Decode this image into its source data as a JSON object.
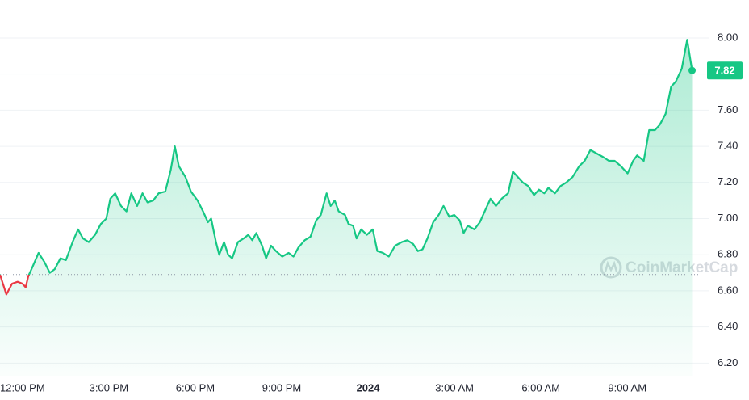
{
  "chart_data": {
    "type": "line",
    "x": [
      -0.78,
      -0.56,
      -0.36,
      -0.17,
      0,
      0.11,
      0.2,
      0.34,
      0.56,
      0.76,
      0.95,
      1.12,
      1.32,
      1.51,
      1.74,
      1.93,
      2.1,
      2.3,
      2.52,
      2.72,
      2.91,
      3.05,
      3.22,
      3.42,
      3.61,
      3.78,
      3.98,
      4.17,
      4.34,
      4.54,
      4.73,
      4.96,
      5.15,
      5.29,
      5.43,
      5.66,
      5.85,
      6.08,
      6.27,
      6.44,
      6.55,
      6.72,
      6.83,
      7,
      7.14,
      7.28,
      7.48,
      7.68,
      7.84,
      7.98,
      8.12,
      8.32,
      8.46,
      8.63,
      8.8,
      9.02,
      9.24,
      9.41,
      9.58,
      9.8,
      10,
      10.2,
      10.36,
      10.56,
      10.7,
      10.84,
      10.98,
      11.2,
      11.32,
      11.48,
      11.6,
      11.76,
      11.96,
      12.16,
      12.32,
      12.52,
      12.72,
      12.94,
      13.17,
      13.36,
      13.56,
      13.73,
      13.89,
      14.06,
      14.26,
      14.45,
      14.62,
      14.82,
      14.99,
      15.18,
      15.32,
      15.46,
      15.69,
      15.88,
      16.08,
      16.25,
      16.44,
      16.64,
      16.86,
      17.03,
      17.2,
      17.37,
      17.56,
      17.76,
      17.93,
      18.12,
      18.26,
      18.49,
      18.68,
      18.88,
      19.1,
      19.33,
      19.52,
      19.72,
      19.94,
      20.17,
      20.36,
      20.56,
      20.78,
      21.01,
      21.2,
      21.34,
      21.57,
      21.76,
      21.96,
      22.13,
      22.33,
      22.52,
      22.69,
      22.89,
      23.08,
      23.25
    ],
    "series": [
      {
        "values": [
          6.69,
          6.58,
          6.64,
          6.65,
          6.64,
          6.62,
          6.68,
          6.73,
          6.81,
          6.76,
          6.7,
          6.72,
          6.78,
          6.77,
          6.87,
          6.94,
          6.89,
          6.87,
          6.91,
          6.97,
          7,
          7.11,
          7.14,
          7.07,
          7.04,
          7.14,
          7.07,
          7.14,
          7.09,
          7.1,
          7.14,
          7.15,
          7.27,
          7.4,
          7.29,
          7.23,
          7.15,
          7.1,
          7.04,
          6.98,
          7,
          6.87,
          6.8,
          6.87,
          6.8,
          6.78,
          6.87,
          6.89,
          6.91,
          6.88,
          6.92,
          6.85,
          6.78,
          6.85,
          6.82,
          6.79,
          6.81,
          6.79,
          6.84,
          6.88,
          6.9,
          6.99,
          7.02,
          7.14,
          7.07,
          7.1,
          7.04,
          7.02,
          6.97,
          6.96,
          6.89,
          6.94,
          6.91,
          6.94,
          6.82,
          6.81,
          6.79,
          6.85,
          6.87,
          6.88,
          6.86,
          6.82,
          6.83,
          6.89,
          6.98,
          7.02,
          7.07,
          7.01,
          7.02,
          6.99,
          6.92,
          6.96,
          6.94,
          6.98,
          7.05,
          7.11,
          7.07,
          7.11,
          7.14,
          7.26,
          7.23,
          7.2,
          7.18,
          7.13,
          7.16,
          7.14,
          7.17,
          7.14,
          7.18,
          7.2,
          7.23,
          7.29,
          7.32,
          7.38,
          7.36,
          7.34,
          7.32,
          7.32,
          7.29,
          7.25,
          7.32,
          7.35,
          7.32,
          7.49,
          7.49,
          7.52,
          7.58,
          7.73,
          7.76,
          7.83,
          7.99,
          7.82
        ],
        "color": "#16c784",
        "down_color": "#ea3943"
      }
    ],
    "open_price": 6.69,
    "current_price": 7.82,
    "xlim": [
      -0.78,
      23.6
    ],
    "xticks": [
      {
        "value": 0,
        "label": "12:00 PM"
      },
      {
        "value": 3,
        "label": "3:00 PM"
      },
      {
        "value": 6,
        "label": "6:00 PM"
      },
      {
        "value": 9,
        "label": "9:00 PM"
      },
      {
        "value": 12,
        "label": "2024"
      },
      {
        "value": 15,
        "label": "3:00 AM"
      },
      {
        "value": 18,
        "label": "6:00 AM"
      },
      {
        "value": 21,
        "label": "9:00 AM"
      }
    ],
    "ylim": [
      6.13,
      8.21
    ],
    "yticks": [
      {
        "value": 6.2,
        "label": "6.20"
      },
      {
        "value": 6.4,
        "label": "6.40"
      },
      {
        "value": 6.6,
        "label": "6.60"
      },
      {
        "value": 6.8,
        "label": "6.80"
      },
      {
        "value": 7,
        "label": "7.00"
      },
      {
        "value": 7.2,
        "label": "7.20"
      },
      {
        "value": 7.4,
        "label": "7.40"
      },
      {
        "value": 7.6,
        "label": "7.60"
      },
      {
        "value": 7.8,
        "label": "7.80"
      },
      {
        "value": 8,
        "label": "8.00"
      }
    ],
    "grid": true,
    "watermark": "CoinMarketCap"
  }
}
